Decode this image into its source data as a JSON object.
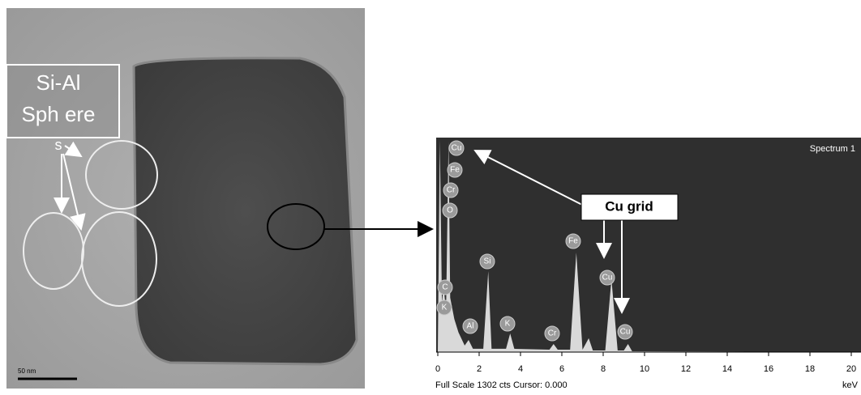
{
  "image_panel": {
    "label_lines": [
      "Si-Al",
      "Sph ere",
      "s"
    ],
    "scale_bar": "50 nm"
  },
  "chart_data": {
    "type": "area",
    "title": "Spectrum 1",
    "footer": "Full Scale 1302 cts Cursor: 0.000",
    "x_label": "keV",
    "annotation": "Cu grid",
    "color": "#d9d9d9",
    "x": [
      0,
      0.1,
      0.2,
      0.28,
      0.4,
      0.52,
      0.6,
      0.8,
      1.0,
      1.3,
      1.49,
      1.7,
      2.2,
      2.44,
      2.6,
      3.3,
      3.5,
      3.7,
      5.4,
      5.6,
      5.8,
      6.4,
      6.7,
      7.0,
      7.3,
      7.5,
      8.1,
      8.4,
      8.7,
      9.0,
      9.2,
      9.4,
      20
    ],
    "y": [
      0,
      1290,
      300,
      400,
      250,
      1280,
      330,
      200,
      120,
      40,
      74,
      20,
      20,
      491,
      20,
      20,
      113,
      20,
      15,
      49,
      15,
      15,
      604,
      15,
      84,
      10,
      10,
      442,
      10,
      10,
      49,
      5,
      0
    ],
    "xlim": [
      0,
      20
    ],
    "ylim": [
      0,
      1302
    ],
    "xticks": [
      0,
      2,
      4,
      6,
      8,
      10,
      12,
      14,
      16,
      18,
      20
    ],
    "peak_labels": [
      "Cu",
      "Fe",
      "Cr",
      "O",
      "Si",
      "Fe",
      "Cu",
      "C",
      "K",
      "Al",
      "K",
      "Cr",
      "Cu"
    ]
  }
}
